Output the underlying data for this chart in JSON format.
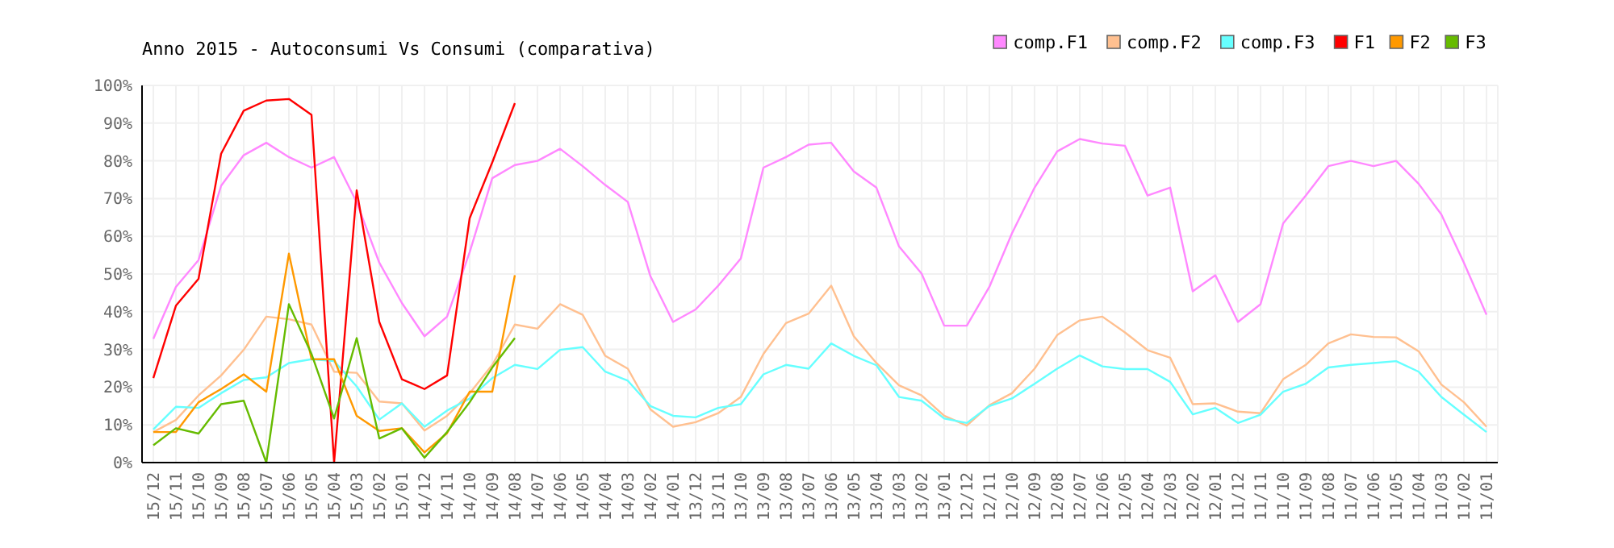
{
  "chart_data": {
    "type": "line",
    "title": "Anno 2015 - Autoconsumi Vs Consumi (comparativa)",
    "categories": [
      "15/12",
      "15/11",
      "15/10",
      "15/09",
      "15/08",
      "15/07",
      "15/06",
      "15/05",
      "15/04",
      "15/03",
      "15/02",
      "15/01",
      "14/12",
      "14/11",
      "14/10",
      "14/09",
      "14/08",
      "14/07",
      "14/06",
      "14/05",
      "14/04",
      "14/03",
      "14/02",
      "14/01",
      "13/12",
      "13/11",
      "13/10",
      "13/09",
      "13/08",
      "13/07",
      "13/06",
      "13/05",
      "13/04",
      "13/03",
      "13/02",
      "13/01",
      "12/12",
      "12/11",
      "12/10",
      "12/09",
      "12/08",
      "12/07",
      "12/06",
      "12/05",
      "12/04",
      "12/03",
      "12/02",
      "12/01",
      "11/12",
      "11/11",
      "11/10",
      "11/09",
      "11/08",
      "11/07",
      "11/06",
      "11/05",
      "11/04",
      "11/03",
      "11/02",
      "11/01"
    ],
    "ylim": [
      0,
      100
    ],
    "yticks": [
      {
        "value": 0,
        "label": "0%"
      },
      {
        "value": 10,
        "label": "10%"
      },
      {
        "value": 20,
        "label": "20%"
      },
      {
        "value": 30,
        "label": "30%"
      },
      {
        "value": 40,
        "label": "40%"
      },
      {
        "value": 50,
        "label": "50%"
      },
      {
        "value": 60,
        "label": "60%"
      },
      {
        "value": 70,
        "label": "70%"
      },
      {
        "value": 80,
        "label": "80%"
      },
      {
        "value": 90,
        "label": "90%"
      },
      {
        "value": 100,
        "label": "100%"
      }
    ],
    "grid": true,
    "legend": "top right",
    "marker": "none",
    "line_style": "solid",
    "series": [
      {
        "name": "comp.F1",
        "color": "#ff88ff",
        "values": [
          32.8,
          46.6,
          53.7,
          73.4,
          81.5,
          84.8,
          81,
          78.2,
          81,
          69,
          53,
          42.3,
          33.5,
          38.7,
          55.8,
          75.4,
          78.9,
          80,
          83.2,
          78.6,
          73.6,
          69.1,
          49.4,
          37.3,
          40.6,
          46.9,
          54.1,
          78.2,
          81,
          84.3,
          84.8,
          77.2,
          72.9,
          57.3,
          50.1,
          36.3,
          36.3,
          46.6,
          60.8,
          72.9,
          82.5,
          85.8,
          84.6,
          84,
          70.8,
          72.9,
          45.4,
          49.7,
          37.3,
          42,
          63.4,
          70.8,
          78.6,
          80,
          78.6,
          80,
          73.9,
          65.8,
          53,
          39.2
        ]
      },
      {
        "name": "comp.F2",
        "color": "#ffc090",
        "values": [
          8.1,
          11.3,
          17.8,
          23.1,
          29.9,
          38.7,
          38,
          36.6,
          24.1,
          23.8,
          16.2,
          15.7,
          8.5,
          12.4,
          18.4,
          25.9,
          36.6,
          35.5,
          42,
          39.2,
          28.3,
          24.9,
          14.1,
          9.5,
          10.7,
          13.1,
          17.4,
          28.8,
          37,
          39.5,
          46.9,
          33.5,
          26.4,
          20.5,
          17.8,
          12.4,
          9.8,
          15.2,
          18.4,
          24.9,
          33.8,
          37.7,
          38.7,
          34.5,
          29.8,
          27.8,
          15.5,
          15.7,
          13.5,
          13.1,
          22.1,
          25.9,
          31.6,
          34,
          33.3,
          33.2,
          29.5,
          20.7,
          16,
          9.5
        ]
      },
      {
        "name": "comp.F3",
        "color": "#66ffff",
        "values": [
          8.8,
          14.8,
          14.5,
          18.4,
          21.9,
          22.6,
          26.4,
          27.4,
          26.9,
          20.2,
          11.4,
          15.7,
          9.5,
          13.8,
          17,
          22.4,
          25.9,
          24.8,
          29.9,
          30.6,
          24.1,
          21.7,
          15,
          12.4,
          12,
          14.5,
          15.5,
          23.4,
          25.9,
          24.9,
          31.6,
          28.3,
          25.8,
          17.4,
          16.4,
          11.7,
          10.5,
          15,
          17,
          20.9,
          24.9,
          28.4,
          25.5,
          24.8,
          24.8,
          21.4,
          12.8,
          14.5,
          10.5,
          12.7,
          18.8,
          20.9,
          25.2,
          25.9,
          26.4,
          26.9,
          24.1,
          17.4,
          12.7,
          8.1
        ]
      },
      {
        "name": "F1",
        "color": "#ff0000",
        "values": [
          22.4,
          41.6,
          48.7,
          81.9,
          93.3,
          96,
          96.4,
          92.2,
          0,
          72.2,
          37.3,
          22.1,
          19.5,
          23.1,
          64.8,
          79.6,
          95.3,
          null,
          null,
          null,
          null,
          null,
          null,
          null,
          null,
          null,
          null,
          null,
          null,
          null,
          null,
          null,
          null,
          null,
          null,
          null,
          null,
          null,
          null,
          null,
          null,
          null,
          null,
          null,
          null,
          null,
          null,
          null,
          null,
          null,
          null,
          null,
          null,
          null,
          null,
          null,
          null,
          null,
          null,
          null
        ]
      },
      {
        "name": "F2",
        "color": "#ff9900",
        "values": [
          8.1,
          8.1,
          16,
          19.5,
          23.4,
          18.8,
          55.4,
          27.4,
          27.4,
          12.4,
          8.4,
          9.1,
          2.7,
          7.8,
          18.8,
          18.8,
          49.7,
          null,
          null,
          null,
          null,
          null,
          null,
          null,
          null,
          null,
          null,
          null,
          null,
          null,
          null,
          null,
          null,
          null,
          null,
          null,
          null,
          null,
          null,
          null,
          null,
          null,
          null,
          null,
          null,
          null,
          null,
          null,
          null,
          null,
          null,
          null,
          null,
          null,
          null,
          null,
          null,
          null,
          null,
          null
        ]
      },
      {
        "name": "F3",
        "color": "#66bb00",
        "values": [
          4.6,
          9.1,
          7.7,
          15.5,
          16.4,
          0,
          42,
          28.8,
          11.7,
          33,
          6.4,
          9.1,
          1.3,
          8.1,
          16,
          25.2,
          33,
          null,
          null,
          null,
          null,
          null,
          null,
          null,
          null,
          null,
          null,
          null,
          null,
          null,
          null,
          null,
          null,
          null,
          null,
          null,
          null,
          null,
          null,
          null,
          null,
          null,
          null,
          null,
          null,
          null,
          null,
          null,
          null,
          null,
          null,
          null,
          null,
          null,
          null,
          null,
          null,
          null,
          null,
          null
        ]
      }
    ]
  }
}
